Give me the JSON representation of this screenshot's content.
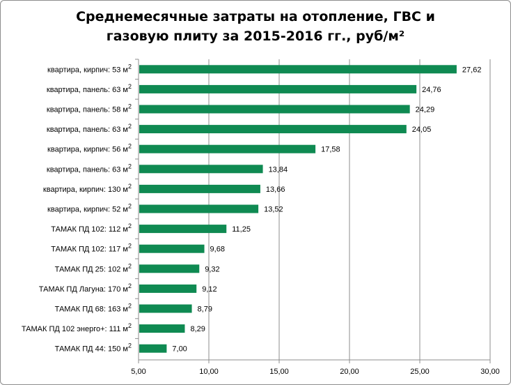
{
  "title_lines": [
    "Среднемесячные затраты на отопление, ГВС и",
    "газовую плиту за 2015-2016  гг., руб/м²"
  ],
  "chart_data": {
    "type": "bar",
    "orientation": "horizontal",
    "title": "Среднемесячные затраты на отопление, ГВС и газовую плиту за 2015-2016  гг., руб/м²",
    "categories": [
      {
        "label": "квартира, кирпич: 53 м",
        "sup": "2"
      },
      {
        "label": "квартира, панель: 63 м",
        "sup": "2"
      },
      {
        "label": "квартира, панель: 58 м",
        "sup": "2"
      },
      {
        "label": "квартира, панель: 63 м",
        "sup": "2"
      },
      {
        "label": "квартира, кирпич: 56 м",
        "sup": "2"
      },
      {
        "label": "квартира, панель: 63 м",
        "sup": "2"
      },
      {
        "label": "квартира, кирпич: 130 м",
        "sup": "2"
      },
      {
        "label": "квартира, кирпич: 52 м",
        "sup": "2"
      },
      {
        "label": "ТАМАК  ПД 102: 112 м",
        "sup": "2"
      },
      {
        "label": "ТАМАК  ПД 102: 117 м",
        "sup": "2"
      },
      {
        "label": "ТАМАК  ПД 25: 102 м",
        "sup": "2"
      },
      {
        "label": "ТАМАК  ПД Лагуна: 170 м",
        "sup": "2"
      },
      {
        "label": "ТАМАК  ПД 68: 163 м",
        "sup": "2"
      },
      {
        "label": "ТАМАК  ПД 102 энерго+: 111 м",
        "sup": "2"
      },
      {
        "label": "ТАМАК  ПД 44: 150 м",
        "sup": "2"
      }
    ],
    "values": [
      27.62,
      24.76,
      24.29,
      24.05,
      17.58,
      13.84,
      13.66,
      13.52,
      11.25,
      9.68,
      9.32,
      9.12,
      8.79,
      8.29,
      7.0
    ],
    "value_labels": [
      "27,62",
      "24,76",
      "24,29",
      "24,05",
      "17,58",
      "13,84",
      "13,66",
      "13,52",
      "11,25",
      "9,68",
      "9,32",
      "9,12",
      "8,79",
      "8,29",
      "7,00"
    ],
    "xlim": [
      5,
      30
    ],
    "xticks": [
      5,
      10,
      15,
      20,
      25,
      30
    ],
    "xtick_labels": [
      "5,00",
      "10,00",
      "15,00",
      "20,00",
      "25,00",
      "30,00"
    ],
    "grid": "vertical",
    "bar_color": "#0f8a52",
    "grid_color": "#8c8c8c"
  }
}
